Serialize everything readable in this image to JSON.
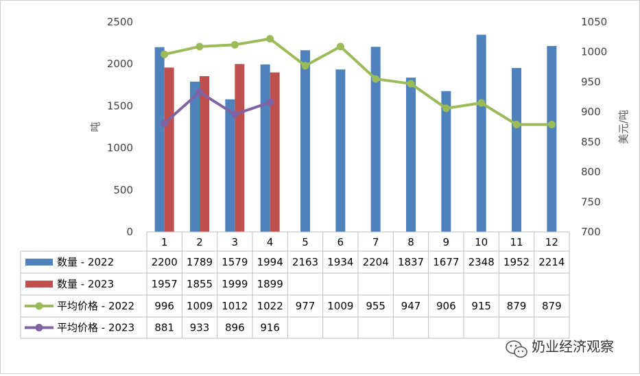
{
  "chart_data": {
    "type": "bar",
    "categories": [
      "1",
      "2",
      "3",
      "4",
      "5",
      "6",
      "7",
      "8",
      "9",
      "10",
      "11",
      "12"
    ],
    "series": [
      {
        "name": "数量 - 2022",
        "kind": "bar",
        "axis": "left",
        "color": "#4f81bd",
        "values": [
          2200,
          1789,
          1579,
          1994,
          2163,
          1934,
          2204,
          1837,
          1677,
          2348,
          1952,
          2214
        ]
      },
      {
        "name": "数量 - 2023",
        "kind": "bar",
        "axis": "left",
        "color": "#c0504d",
        "values": [
          1957,
          1855,
          1999,
          1899,
          null,
          null,
          null,
          null,
          null,
          null,
          null,
          null
        ]
      },
      {
        "name": "平均价格 - 2022",
        "kind": "line",
        "axis": "right",
        "color": "#9bbb59",
        "values": [
          996,
          1009,
          1012,
          1022,
          977,
          1009,
          955,
          947,
          906,
          915,
          879,
          879
        ]
      },
      {
        "name": "平均价格 - 2023",
        "kind": "line",
        "axis": "right",
        "color": "#8064a2",
        "values": [
          881,
          933,
          896,
          916,
          null,
          null,
          null,
          null,
          null,
          null,
          null,
          null
        ]
      }
    ],
    "ylabel": "吨",
    "y2label": "美元/吨",
    "ylim": [
      0,
      2500
    ],
    "y2lim": [
      700,
      1050
    ],
    "yticks": [
      "0",
      "500",
      "1000",
      "1500",
      "2000",
      "2500"
    ],
    "y2ticks": [
      "700",
      "750",
      "800",
      "850",
      "900",
      "950",
      "1000",
      "1050"
    ],
    "legend_position": "bottom-table",
    "grid": false,
    "data_table": true
  },
  "watermark": {
    "text": "奶业经济观察",
    "icon": "wechat-icon"
  }
}
